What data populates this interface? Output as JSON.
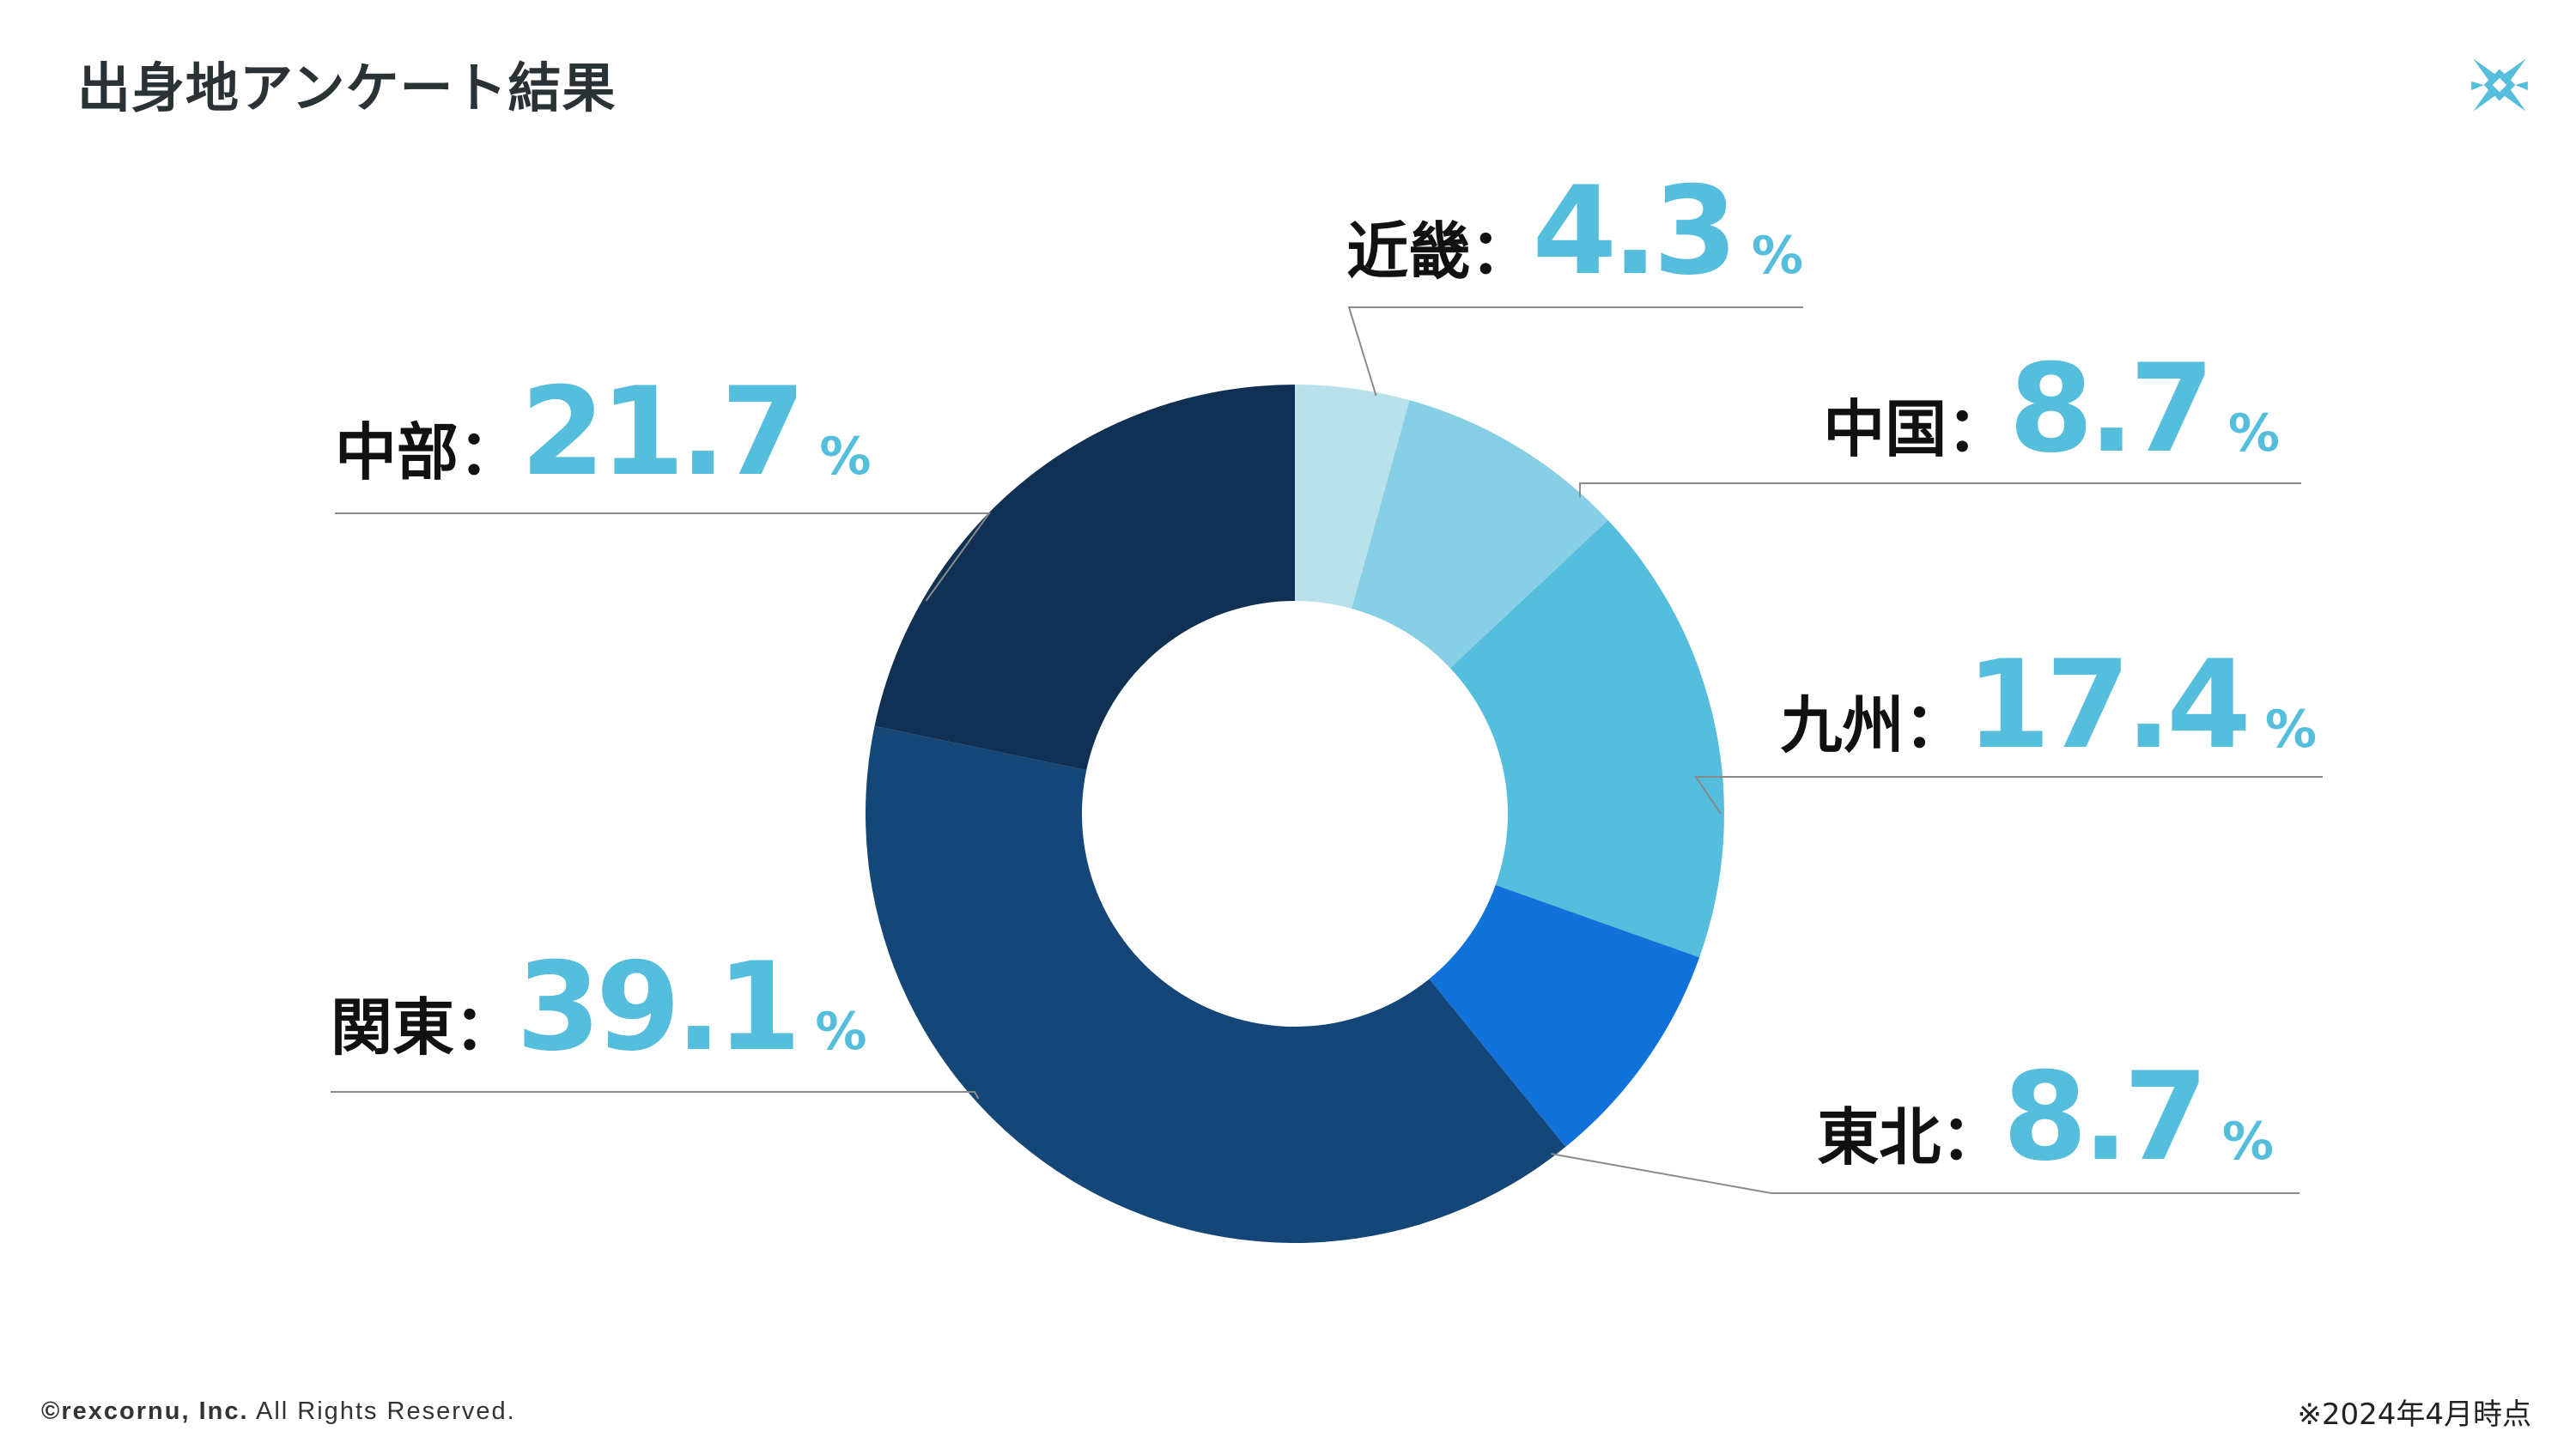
{
  "slide": {
    "title": "出身地アンケート結果",
    "footer_company": "©rexcornu, Inc.",
    "footer_rights": "All Rights Reserved.",
    "footnote": "※2024年4月時点",
    "logo_icon": "rexcornu-logo-icon"
  },
  "colors": {
    "accent": "#55bedc",
    "title": "#2b3236",
    "leader_line": "#8a8a8a"
  },
  "chart_data": {
    "type": "pie",
    "donut": true,
    "unit": "%",
    "separator": "：",
    "start_angle_deg": 0,
    "direction": "clockwise",
    "categories": [
      "近畿",
      "中国",
      "九州",
      "東北",
      "関東",
      "中部"
    ],
    "values": [
      4.3,
      8.7,
      17.4,
      8.7,
      39.1,
      21.7
    ],
    "value_labels": [
      "4.3",
      "8.7",
      "17.4",
      "8.7",
      "39.1",
      "21.7"
    ],
    "colors": [
      "#b8e1ec",
      "#87cfe5",
      "#55bedc",
      "#1173d9",
      "#144678",
      "#103054"
    ],
    "label_sides": [
      "right",
      "right",
      "right",
      "right",
      "left",
      "left"
    ],
    "legend": "none"
  }
}
